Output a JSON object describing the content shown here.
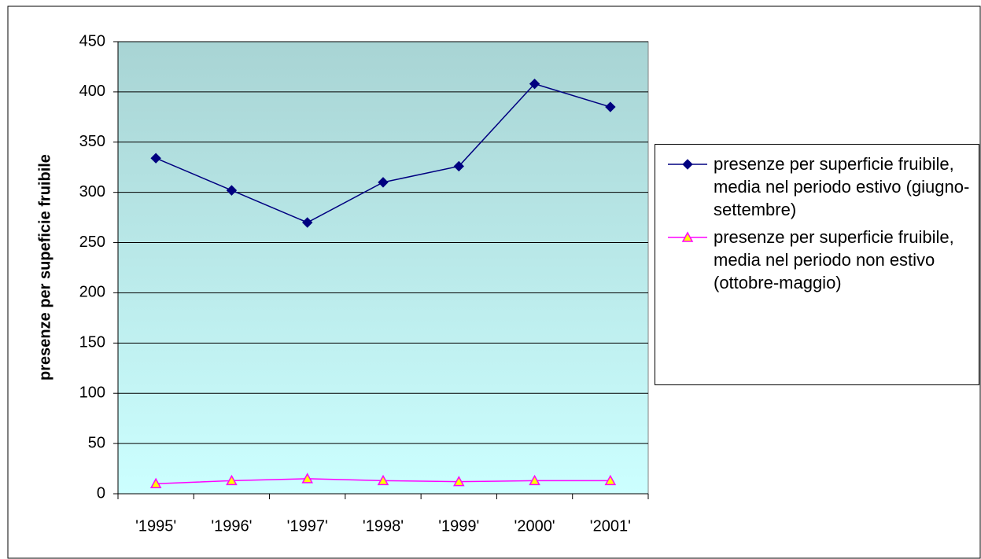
{
  "chart_data": {
    "type": "line",
    "y_label": "presenze per supeficie fruibile",
    "categories": [
      "'1995'",
      "'1996'",
      "'1997'",
      "'1998'",
      "'1999'",
      "'2000'",
      "'2001'"
    ],
    "series": [
      {
        "name": "presenze per superficie fruibile, media nel periodo estivo (giugno-settembre)",
        "color": "#000080",
        "marker": "diamond",
        "values": [
          334,
          302,
          270,
          310,
          326,
          408,
          385
        ]
      },
      {
        "name": "presenze per superficie fruibile, media nel periodo non estivo (ottobre-maggio)",
        "color": "#ff00ff",
        "marker": "triangle",
        "values": [
          10,
          13,
          15,
          13,
          12,
          13,
          13
        ]
      }
    ],
    "ylim": [
      0,
      450
    ],
    "yticks": [
      0,
      50,
      100,
      150,
      200,
      250,
      300,
      350,
      400,
      450
    ],
    "grid": true
  }
}
